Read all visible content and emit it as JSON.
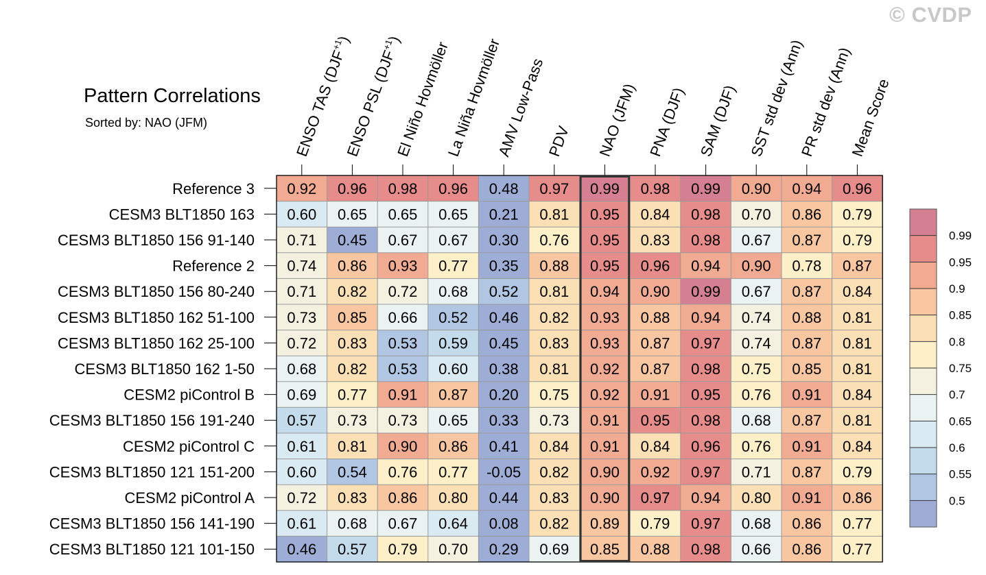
{
  "watermark": "© CVDP",
  "chart_data": {
    "type": "heatmap",
    "title": "Pattern Correlations",
    "subtitle": "Sorted by: NAO (JFM)",
    "highlighted_column": "NAO (JFM)",
    "columns": [
      {
        "pre": "ENSO TAS (DJF",
        "sup": "+1",
        "post": ")"
      },
      {
        "pre": "ENSO PSL (DJF",
        "sup": "+1",
        "post": ")"
      },
      {
        "pre": "El Niño Hovmöller"
      },
      {
        "pre": "La Niña Hovmöller"
      },
      {
        "pre": "AMV Low-Pass"
      },
      {
        "pre": "PDV"
      },
      {
        "pre": "NAO (JFM)"
      },
      {
        "pre": "PNA (DJF)"
      },
      {
        "pre": "SAM (DJF)"
      },
      {
        "pre": "SST std dev (Ann)"
      },
      {
        "pre": "PR std dev (Ann)"
      },
      {
        "pre": "Mean Score"
      }
    ],
    "rows": [
      {
        "name": "Reference 3",
        "values": [
          "0.92",
          "0.96",
          "0.98",
          "0.96",
          "0.48",
          "0.97",
          "0.99",
          "0.98",
          "0.99",
          "0.90",
          "0.94",
          "0.96"
        ]
      },
      {
        "name": "CESM3 BLT1850 163",
        "values": [
          "0.60",
          "0.65",
          "0.65",
          "0.65",
          "0.21",
          "0.81",
          "0.95",
          "0.84",
          "0.98",
          "0.70",
          "0.86",
          "0.79"
        ]
      },
      {
        "name": "CESM3 BLT1850 156 91-140",
        "values": [
          "0.71",
          "0.45",
          "0.67",
          "0.67",
          "0.30",
          "0.76",
          "0.95",
          "0.83",
          "0.98",
          "0.67",
          "0.87",
          "0.79"
        ]
      },
      {
        "name": "Reference 2",
        "values": [
          "0.74",
          "0.86",
          "0.93",
          "0.77",
          "0.35",
          "0.88",
          "0.95",
          "0.96",
          "0.94",
          "0.90",
          "0.78",
          "0.87"
        ]
      },
      {
        "name": "CESM3 BLT1850 156 80-240",
        "values": [
          "0.71",
          "0.82",
          "0.72",
          "0.68",
          "0.52",
          "0.81",
          "0.94",
          "0.90",
          "0.99",
          "0.67",
          "0.87",
          "0.84"
        ]
      },
      {
        "name": "CESM3 BLT1850 162 51-100",
        "values": [
          "0.73",
          "0.85",
          "0.66",
          "0.52",
          "0.46",
          "0.82",
          "0.93",
          "0.88",
          "0.94",
          "0.74",
          "0.88",
          "0.81"
        ]
      },
      {
        "name": "CESM3 BLT1850 162 25-100",
        "values": [
          "0.72",
          "0.83",
          "0.53",
          "0.59",
          "0.45",
          "0.83",
          "0.93",
          "0.87",
          "0.97",
          "0.74",
          "0.87",
          "0.81"
        ]
      },
      {
        "name": "CESM3 BLT1850 162 1-50",
        "values": [
          "0.68",
          "0.82",
          "0.53",
          "0.60",
          "0.38",
          "0.81",
          "0.92",
          "0.87",
          "0.98",
          "0.75",
          "0.85",
          "0.81"
        ]
      },
      {
        "name": "CESM2 piControl B",
        "values": [
          "0.69",
          "0.77",
          "0.91",
          "0.87",
          "0.20",
          "0.75",
          "0.92",
          "0.91",
          "0.95",
          "0.76",
          "0.91",
          "0.84"
        ]
      },
      {
        "name": "CESM3 BLT1850 156 191-240",
        "values": [
          "0.57",
          "0.73",
          "0.73",
          "0.65",
          "0.33",
          "0.73",
          "0.91",
          "0.95",
          "0.98",
          "0.68",
          "0.87",
          "0.81"
        ]
      },
      {
        "name": "CESM2 piControl C",
        "values": [
          "0.61",
          "0.81",
          "0.90",
          "0.86",
          "0.41",
          "0.84",
          "0.91",
          "0.84",
          "0.96",
          "0.76",
          "0.91",
          "0.84"
        ]
      },
      {
        "name": "CESM3 BLT1850 121 151-200",
        "values": [
          "0.60",
          "0.54",
          "0.76",
          "0.77",
          "-0.05",
          "0.82",
          "0.90",
          "0.92",
          "0.97",
          "0.71",
          "0.87",
          "0.79"
        ]
      },
      {
        "name": "CESM2 piControl A",
        "values": [
          "0.72",
          "0.83",
          "0.86",
          "0.80",
          "0.44",
          "0.83",
          "0.90",
          "0.97",
          "0.94",
          "0.80",
          "0.91",
          "0.86"
        ]
      },
      {
        "name": "CESM3 BLT1850 156 141-190",
        "values": [
          "0.61",
          "0.68",
          "0.67",
          "0.64",
          "0.08",
          "0.82",
          "0.89",
          "0.79",
          "0.97",
          "0.68",
          "0.86",
          "0.77"
        ]
      },
      {
        "name": "CESM3 BLT1850 121 101-150",
        "values": [
          "0.46",
          "0.57",
          "0.79",
          "0.70",
          "0.29",
          "0.69",
          "0.85",
          "0.88",
          "0.98",
          "0.66",
          "0.86",
          "0.77"
        ]
      }
    ],
    "colorbar": {
      "levels": [
        0.5,
        0.55,
        0.6,
        0.65,
        0.7,
        0.75,
        0.8,
        0.85,
        0.9,
        0.95,
        0.99
      ],
      "labels": [
        "0.5",
        "0.55",
        "0.6",
        "0.65",
        "0.7",
        "0.75",
        "0.8",
        "0.85",
        "0.9",
        "0.95",
        "0.99"
      ],
      "colors": [
        "#9dadd5",
        "#b1c6e2",
        "#c4dbec",
        "#daeaf2",
        "#ebf3f2",
        "#f4f1e1",
        "#fdf0c8",
        "#fbe0b6",
        "#f9c6a2",
        "#f2ab93",
        "#e68c8b",
        "#d57f92"
      ]
    },
    "highlight_color": "#333333",
    "grid_color": "#999999"
  }
}
